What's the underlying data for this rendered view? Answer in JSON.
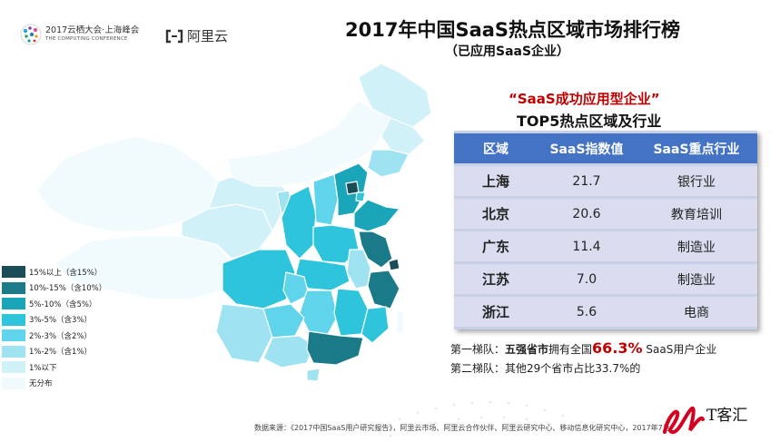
{
  "header": {
    "conference_line1": "2017云栖大会·上海峰会",
    "conference_line2": "THE COMPUTING CONFERENCE",
    "aliyun": "阿里云",
    "title": "2017年中国SaaS热点区域市场排行榜",
    "subtitle": "（已应用SaaS企业）"
  },
  "legend": {
    "items": [
      {
        "label": "15%以上（含15%）",
        "color": "#1a4d57"
      },
      {
        "label": "10%-15%（含10%）",
        "color": "#1b7a87"
      },
      {
        "label": "5%-10%（含5%）",
        "color": "#1aa6b8"
      },
      {
        "label": "3%-5%（含3%）",
        "color": "#2ec4dc"
      },
      {
        "label": "2%-3%（含2%）",
        "color": "#5fd4ea"
      },
      {
        "label": "1%-2%（含1%）",
        "color": "#9fe3f2"
      },
      {
        "label": "1%以下",
        "color": "#d0f1f8"
      },
      {
        "label": "无分布",
        "color": "#f1fafc"
      }
    ]
  },
  "panel": {
    "red_title": "“SaaS成功应用型企业”",
    "black_title": "TOP5热点区域及行业"
  },
  "chart_data": {
    "type": "table",
    "columns": [
      "区域",
      "SaaS指数值",
      "SaaS重点行业"
    ],
    "rows": [
      [
        "上海",
        "21.7",
        "银行业"
      ],
      [
        "北京",
        "20.6",
        "教育培训"
      ],
      [
        "广东",
        "11.4",
        "制造业"
      ],
      [
        "江苏",
        "7.0",
        "制造业"
      ],
      [
        "浙江",
        "5.6",
        "电商"
      ]
    ],
    "map_legend_tiers": [
      "15%以上（含15%）",
      "10%-15%（含10%）",
      "5%-10%（含5%）",
      "3%-5%（含3%）",
      "2%-3%（含2%）",
      "1%-2%（含1%）",
      "1%以下",
      "无分布"
    ]
  },
  "notes": {
    "tier1_prefix": "第一梯队：",
    "tier1_bold": "五强省市",
    "tier1_mid": "拥有全国",
    "tier1_percent": "66.3%",
    "tier1_suffix": " SaaS用户企业",
    "tier2": "第二梯队：其他29个省市占比33.7%的"
  },
  "source": "数据来源：《2017中国SaaS用户研究报告》，阿里云市场、阿里云合作伙伴、阿里云研究中心、移动信息化研究中心，2017年7月",
  "watermark": "T客汇",
  "colors": {
    "table_header": "#4472c4",
    "table_row": "#d9ddef",
    "accent_red": "#c00000"
  }
}
